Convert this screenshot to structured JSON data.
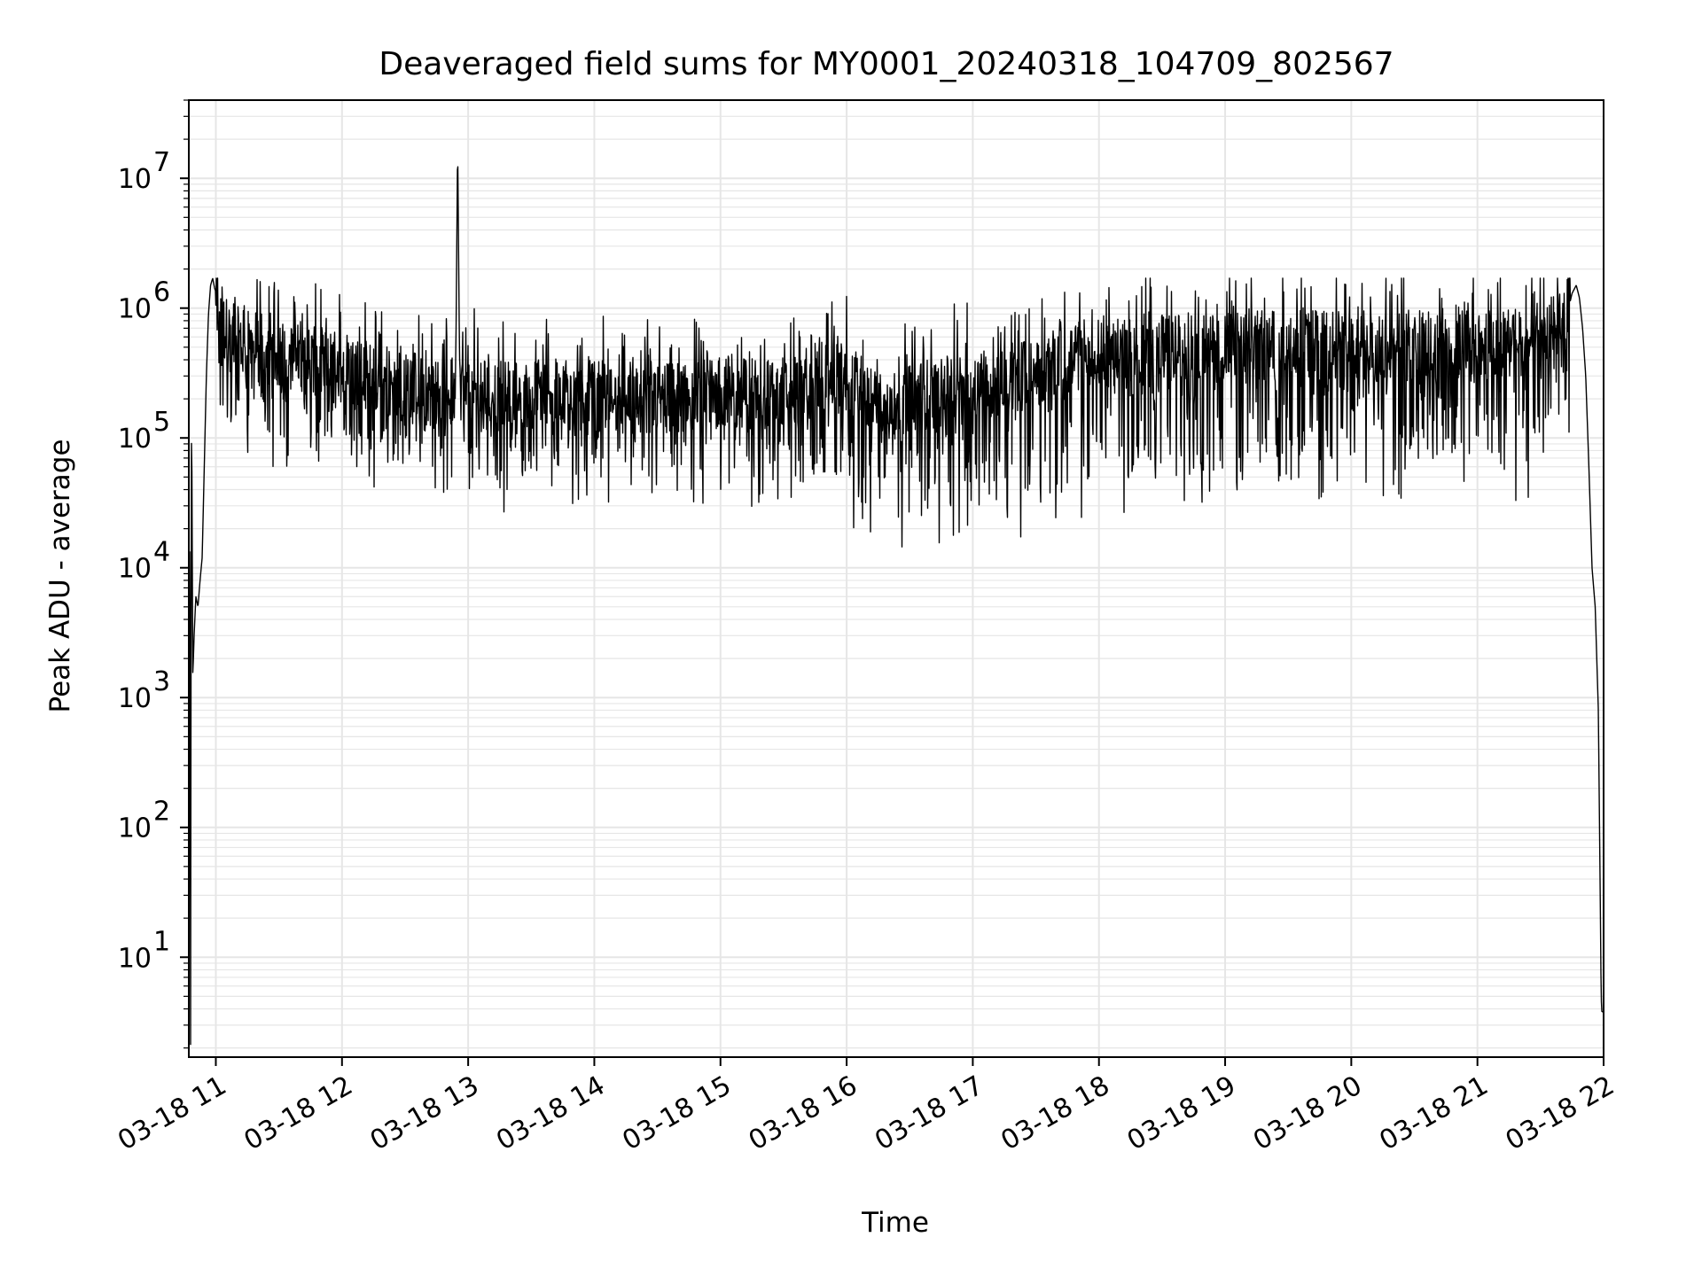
{
  "chart_data": {
    "type": "line",
    "title": "Deaveraged field sums for MY0001_20240318_104709_802567",
    "xlabel": "Time",
    "ylabel": "Peak ADU - average",
    "yscale": "log",
    "ylim": [
      1.7,
      40000000
    ],
    "xlim": [
      "2024-03-18T10:47:09",
      "2024-03-18T22:00:00"
    ],
    "x_ticks": [
      "03-18 11",
      "03-18 12",
      "03-18 13",
      "03-18 14",
      "03-18 15",
      "03-18 16",
      "03-18 17",
      "03-18 18",
      "03-18 19",
      "03-18 20",
      "03-18 21",
      "03-18 22"
    ],
    "y_ticks": [
      {
        "value": 10,
        "base": "10",
        "exp": "1"
      },
      {
        "value": 100,
        "base": "10",
        "exp": "2"
      },
      {
        "value": 1000,
        "base": "10",
        "exp": "3"
      },
      {
        "value": 10000,
        "base": "10",
        "exp": "4"
      },
      {
        "value": 100000,
        "base": "10",
        "exp": "5"
      },
      {
        "value": 1000000,
        "base": "10",
        "exp": "6"
      },
      {
        "value": 10000000,
        "base": "10",
        "exp": "7"
      }
    ],
    "grid": true,
    "legend": "none",
    "line_color": "#000000",
    "grid_color": "#e6e6e6",
    "series": [
      {
        "x": [
          "2024-03-18T10:47:09",
          "2024-03-18T10:47:40",
          "2024-03-18T10:48:00",
          "2024-03-18T10:48:20",
          "2024-03-18T10:48:40",
          "2024-03-18T10:49:00",
          "2024-03-18T10:49:20",
          "2024-03-18T10:49:40",
          "2024-03-18T10:50:30",
          "2024-03-18T10:51:30",
          "2024-03-18T10:52:30",
          "2024-03-18T10:53:30",
          "2024-03-18T10:54:30",
          "2024-03-18T10:55:30",
          "2024-03-18T10:56:30",
          "2024-03-18T10:57:30",
          "2024-03-18T10:58:30",
          "2024-03-18T10:59:30",
          "2024-03-18T11:00:30",
          "2024-03-18T11:02:00",
          "2024-03-18T11:04:00",
          "2024-03-18T11:07:00",
          "2024-03-18T11:10:00",
          "2024-03-18T11:20:00",
          "2024-03-18T11:30:00",
          "2024-03-18T11:45:00",
          "2024-03-18T12:00:00",
          "2024-03-18T12:15:00",
          "2024-03-18T12:30:00",
          "2024-03-18T12:45:00",
          "2024-03-18T12:54:00",
          "2024-03-18T12:55:00",
          "2024-03-18T12:56:00",
          "2024-03-18T13:00:00",
          "2024-03-18T13:15:00",
          "2024-03-18T13:30:00",
          "2024-03-18T14:00:00",
          "2024-03-18T14:30:00",
          "2024-03-18T15:00:00",
          "2024-03-18T15:30:00",
          "2024-03-18T16:00:00",
          "2024-03-18T16:15:00",
          "2024-03-18T16:30:00",
          "2024-03-18T17:00:00",
          "2024-03-18T17:30:00",
          "2024-03-18T18:00:00",
          "2024-03-18T18:30:00",
          "2024-03-18T19:00:00",
          "2024-03-18T19:30:00",
          "2024-03-18T20:00:00",
          "2024-03-18T20:30:00",
          "2024-03-18T21:00:00",
          "2024-03-18T21:20:00",
          "2024-03-18T21:35:00",
          "2024-03-18T21:42:00",
          "2024-03-18T21:45:00",
          "2024-03-18T21:47:00",
          "2024-03-18T21:48:30",
          "2024-03-18T21:50:00",
          "2024-03-18T21:51:30",
          "2024-03-18T21:53:00",
          "2024-03-18T21:54:30",
          "2024-03-18T21:56:00",
          "2024-03-18T21:57:30",
          "2024-03-18T21:58:30",
          "2024-03-18T21:58:50",
          "2024-03-18T21:59:10",
          "2024-03-18T22:00:00"
        ],
        "y": [
          1.7,
          100000,
          1.7,
          110000,
          50000,
          1500,
          2000,
          3000,
          6000,
          5000,
          8000,
          12000,
          60000,
          300000,
          900000,
          1500000,
          1700000,
          1400000,
          1300000,
          900000,
          700000,
          600000,
          550000,
          480000,
          450000,
          400000,
          350000,
          300000,
          250000,
          230000,
          220000,
          19000000,
          250000,
          230000,
          210000,
          220000,
          210000,
          200000,
          220000,
          230000,
          300000,
          170000,
          210000,
          240000,
          330000,
          430000,
          470000,
          500000,
          520000,
          510000,
          520000,
          530000,
          560000,
          600000,
          800000,
          1300000,
          1500000,
          1200000,
          700000,
          300000,
          60000,
          10000,
          5000,
          800,
          20,
          5,
          3.8,
          3.8
        ]
      }
    ]
  }
}
